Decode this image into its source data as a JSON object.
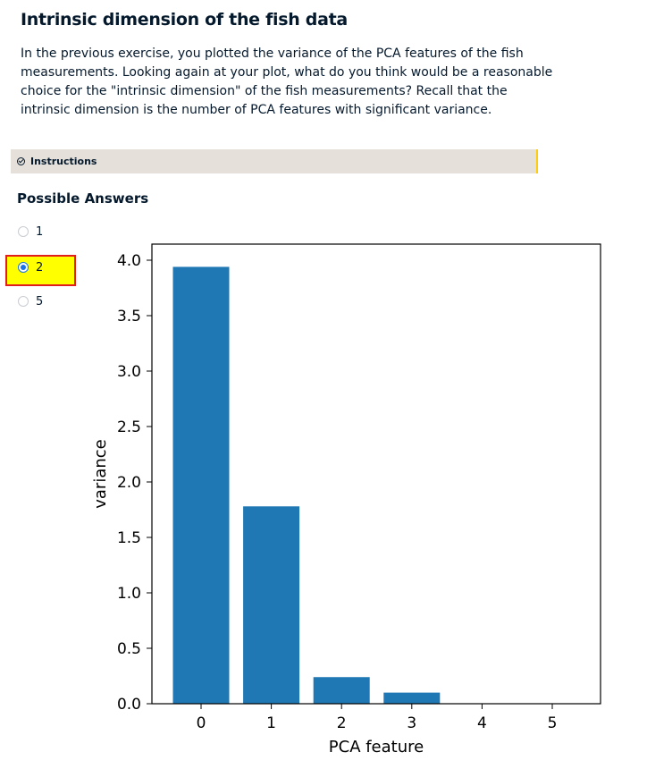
{
  "exercise": {
    "title": "Intrinsic dimension of the fish data",
    "description": "In the previous exercise, you plotted the variance of the PCA features of the fish measurements. Looking again at your plot, what do you think would be a reasonable choice for the \"intrinsic dimension\" of the fish measurements? Recall that the intrinsic dimension is the number of PCA features with significant variance.",
    "instructions_label": "Instructions",
    "possible_answers_heading": "Possible Answers",
    "answers": [
      {
        "label": "1",
        "selected": false
      },
      {
        "label": "2",
        "selected": true
      },
      {
        "label": "5",
        "selected": false
      }
    ]
  },
  "colors": {
    "bar": "#1f77b4",
    "highlight": "#ffff00",
    "highlight_border": "#e01e1e",
    "instructions_bg": "#e5e1da"
  },
  "chart_data": {
    "type": "bar",
    "categories": [
      "0",
      "1",
      "2",
      "3",
      "4",
      "5"
    ],
    "values": [
      3.94,
      1.78,
      0.24,
      0.1,
      0.0,
      0.0
    ],
    "xlabel": "PCA feature",
    "ylabel": "variance",
    "ylim": [
      0,
      4.15
    ],
    "yticks": [
      "0.0",
      "0.5",
      "1.0",
      "1.5",
      "2.0",
      "2.5",
      "3.0",
      "3.5",
      "4.0"
    ],
    "grid": false
  }
}
